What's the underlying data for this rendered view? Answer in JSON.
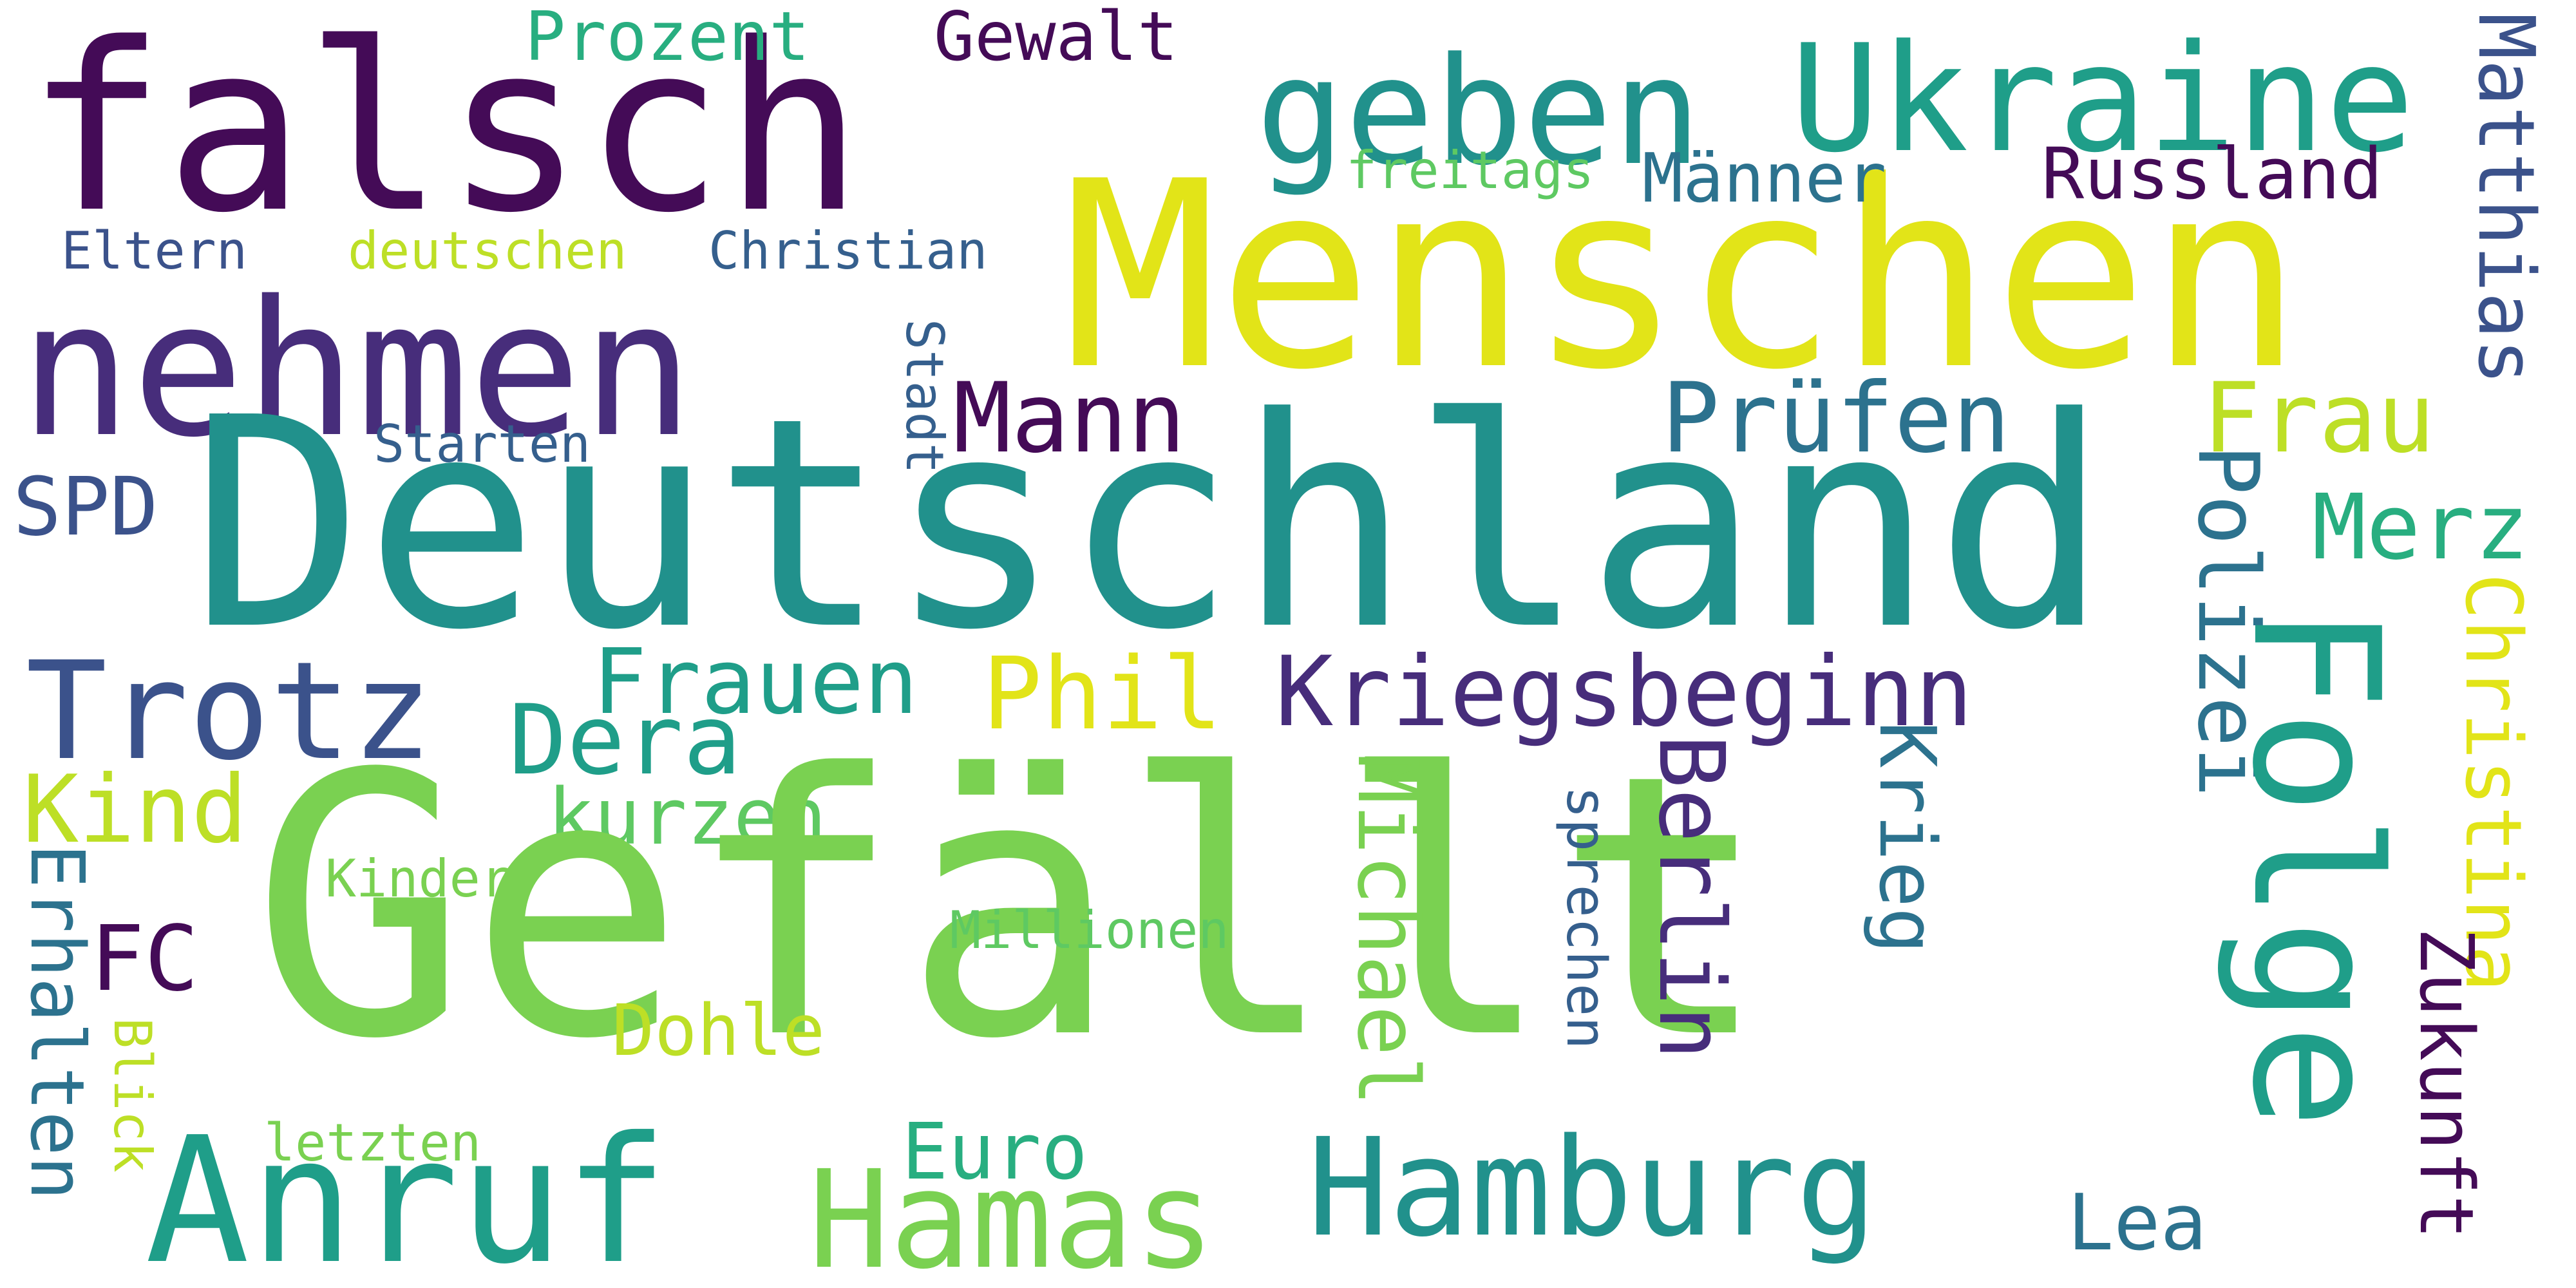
{
  "words": [
    "falsch",
    "Menschen",
    "geben",
    "Ukraine",
    "Prozent",
    "Gewalt",
    "Matthias",
    "nehmen",
    "freitags",
    "Männer",
    "Russland",
    "Eltern",
    "deutschen",
    "Christian",
    "Deutschland",
    "Mann",
    "Prüfen",
    "Frau",
    "Starten",
    "Stadt",
    "SPD",
    "Merz",
    "Polizei",
    "Trotz",
    "Frauen",
    "Phil",
    "Kriegsbeginn",
    "Folge",
    "Christina",
    "Dera",
    "Kind",
    "kurzen",
    "Gefällt",
    "Krieg",
    "Berlin",
    "Michael",
    "sprechen",
    "Kinder",
    "Erhalten",
    "FC",
    "Millionen",
    "Zukunft",
    "Dohle",
    "Blick",
    "letzten",
    "Euro",
    "Anruf",
    "Hamas",
    "Hamburg",
    "Lea"
  ],
  "colors": {
    "deep_purple": "#440b57",
    "indigo": "#472d7b",
    "violet_blue": "#3b528b",
    "slate_blue": "#355f8d",
    "steel_blue": "#2c728e",
    "teal": "#21918c",
    "sea_green": "#1f9e89",
    "jade": "#28ae80",
    "green": "#5ec962",
    "lime": "#7ad151",
    "yellow_green": "#bddf26",
    "yellow": "#e2e418"
  }
}
